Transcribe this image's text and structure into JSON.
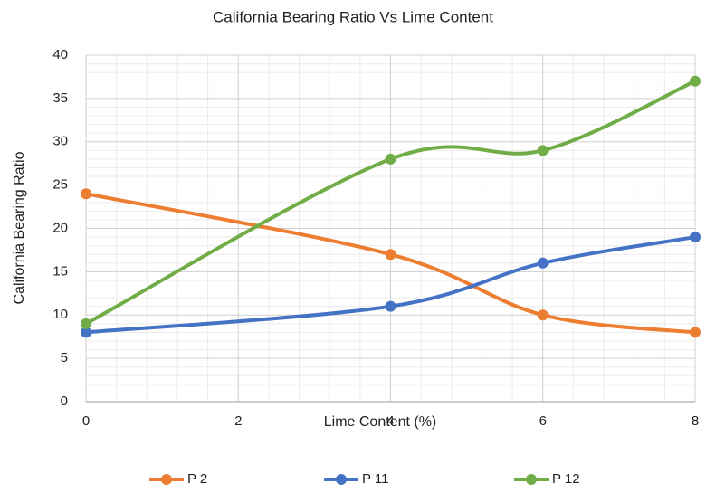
{
  "chart_data": {
    "type": "line",
    "smooth": true,
    "title": "California Bearing Ratio Vs Lime Content",
    "xlabel": "Lime Content (%)",
    "ylabel": "California Bearing Ratio",
    "x": [
      0,
      4,
      6,
      8
    ],
    "series": [
      {
        "name": "P 2",
        "color": "#ed7d31",
        "values": [
          24,
          17,
          10,
          8
        ]
      },
      {
        "name": "P 11",
        "color": "#4472c4",
        "values": [
          8,
          11,
          16,
          19
        ]
      },
      {
        "name": "P 12",
        "color": "#70ad47",
        "values": [
          9,
          28,
          29,
          37
        ]
      }
    ],
    "xlim": [
      0,
      8
    ],
    "xticks": [
      0,
      2,
      4,
      6,
      8
    ],
    "ylim": [
      0,
      40
    ],
    "yticks": [
      0,
      5,
      10,
      15,
      20,
      25,
      30,
      35,
      40
    ],
    "grid": true,
    "legend": "bottom"
  }
}
